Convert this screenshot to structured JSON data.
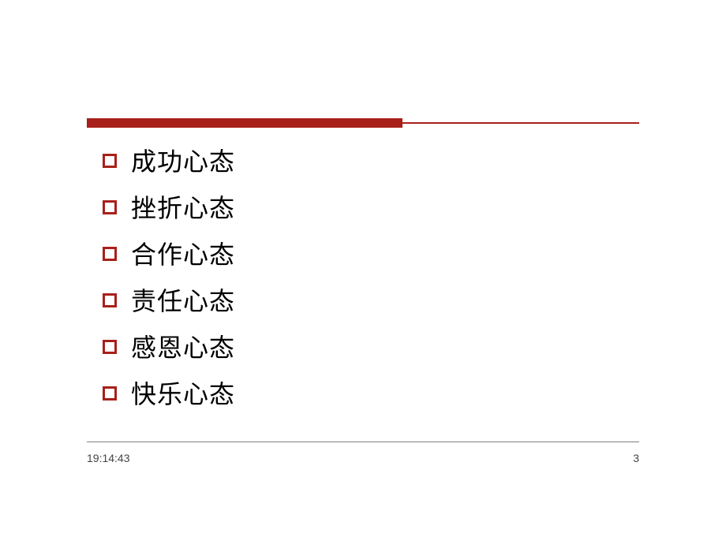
{
  "styling": {
    "accent_color": "#a8201a",
    "bullet_color": "#a8201a",
    "text_color": "#000000",
    "background_color": "#ffffff",
    "bottom_line_color": "#808080",
    "item_fontsize": 32,
    "footer_fontsize": 14
  },
  "list": {
    "items": [
      {
        "label": "成功心态"
      },
      {
        "label": "挫折心态"
      },
      {
        "label": "合作心态"
      },
      {
        "label": "责任心态"
      },
      {
        "label": "感恩心态"
      },
      {
        "label": "快乐心态"
      }
    ]
  },
  "footer": {
    "timestamp": "19:14:43",
    "page_number": "3"
  }
}
